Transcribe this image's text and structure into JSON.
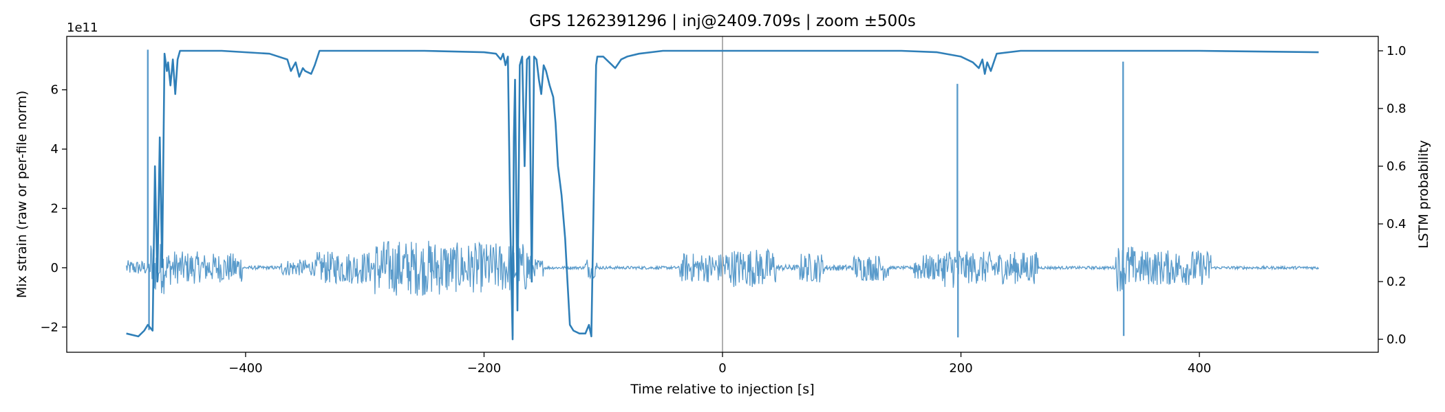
{
  "chart_data": {
    "type": "line",
    "title": "GPS 1262391296 | inj@2409.709s | zoom ±500s",
    "xlabel": "Time relative to injection [s]",
    "ylabel": "Mix strain (raw or per-file norm)",
    "y2label": "LSTM probability",
    "y_offset_text": "1e11",
    "xlim": [
      -550,
      550
    ],
    "ylim": [
      -2.85,
      7.8
    ],
    "y2lim": [
      -0.045,
      1.05
    ],
    "x_ticks": [
      -400,
      -200,
      0,
      200,
      400
    ],
    "x_tick_labels": [
      "−400",
      "−200",
      "0",
      "200",
      "400"
    ],
    "y_ticks": [
      -2,
      0,
      2,
      4,
      6
    ],
    "y_tick_labels": [
      "−2",
      "0",
      "2",
      "4",
      "6"
    ],
    "y2_ticks": [
      0.0,
      0.2,
      0.4,
      0.6,
      0.8,
      1.0
    ],
    "y2_tick_labels": [
      "0.0",
      "0.2",
      "0.4",
      "0.6",
      "0.8",
      "1.0"
    ],
    "vline_x": 0,
    "colors": {
      "strain": "#5a9bcb",
      "probability": "#2f7fb8",
      "vline": "#b0b0b0"
    },
    "strain_bursts": [
      {
        "start": -500,
        "end": -480,
        "amp": 0.25
      },
      {
        "start": -484,
        "end": -478,
        "amp": 1.0
      },
      {
        "start": -478,
        "end": -468,
        "amp": 0.9
      },
      {
        "start": -468,
        "end": -458,
        "amp": 0.6
      },
      {
        "start": -458,
        "end": -440,
        "amp": 0.55
      },
      {
        "start": -440,
        "end": -402,
        "amp": 0.5
      },
      {
        "start": -402,
        "end": -370,
        "amp": 0.06
      },
      {
        "start": -370,
        "end": -340,
        "amp": 0.28
      },
      {
        "start": -340,
        "end": -292,
        "amp": 0.55
      },
      {
        "start": -292,
        "end": -230,
        "amp": 0.95
      },
      {
        "start": -230,
        "end": -160,
        "amp": 0.85
      },
      {
        "start": -160,
        "end": -150,
        "amp": 0.3
      },
      {
        "start": -150,
        "end": -115,
        "amp": 0.05
      },
      {
        "start": -115,
        "end": -105,
        "amp": 0.35
      },
      {
        "start": -105,
        "end": -36,
        "amp": 0.05
      },
      {
        "start": -36,
        "end": 0,
        "amp": 0.5
      },
      {
        "start": 0,
        "end": 45,
        "amp": 0.65
      },
      {
        "start": 45,
        "end": 65,
        "amp": 0.1
      },
      {
        "start": 65,
        "end": 85,
        "amp": 0.5
      },
      {
        "start": 85,
        "end": 110,
        "amp": 0.1
      },
      {
        "start": 110,
        "end": 140,
        "amp": 0.45
      },
      {
        "start": 140,
        "end": 160,
        "amp": 0.05
      },
      {
        "start": 160,
        "end": 185,
        "amp": 0.45
      },
      {
        "start": 185,
        "end": 200,
        "amp": 0.7
      },
      {
        "start": 200,
        "end": 265,
        "amp": 0.55
      },
      {
        "start": 265,
        "end": 330,
        "amp": 0.05
      },
      {
        "start": 330,
        "end": 345,
        "amp": 0.8
      },
      {
        "start": 345,
        "end": 410,
        "amp": 0.6
      },
      {
        "start": 410,
        "end": 500,
        "amp": 0.05
      }
    ],
    "strain_spikes": [
      {
        "x": -482,
        "y": 7.35
      },
      {
        "x": -481,
        "y": -2.1
      },
      {
        "x": -176,
        "y": -2.3
      },
      {
        "x": 197,
        "y": 6.2
      },
      {
        "x": 197.5,
        "y": -2.35
      },
      {
        "x": 336,
        "y": 6.95
      },
      {
        "x": 336.5,
        "y": -2.3
      }
    ],
    "probability_series": {
      "x": [
        -500,
        -490,
        -485,
        -482,
        -478,
        -476,
        -474,
        -472,
        -470,
        -468,
        -466,
        -465,
        -463,
        -461,
        -459,
        -457,
        -455,
        -450,
        -420,
        -380,
        -365,
        -362,
        -358,
        -355,
        -352,
        -350,
        -345,
        -342,
        -338,
        -300,
        -250,
        -200,
        -190,
        -186,
        -184,
        -182,
        -180,
        -178,
        -176,
        -175,
        -174,
        -172,
        -170,
        -168,
        -166,
        -164,
        -162,
        -160,
        -158,
        -156,
        -154,
        -152,
        -150,
        -148,
        -145,
        -142,
        -140,
        -138,
        -135,
        -132,
        -130,
        -128,
        -125,
        -120,
        -115,
        -112,
        -110,
        -108,
        -106,
        -105,
        -100,
        -95,
        -90,
        -85,
        -80,
        -70,
        -50,
        -20,
        0,
        50,
        100,
        150,
        180,
        200,
        210,
        215,
        218,
        220,
        222,
        225,
        230,
        250,
        300,
        400,
        500
      ],
      "y": [
        0.02,
        0.01,
        0.03,
        0.05,
        0.03,
        0.6,
        0.2,
        0.7,
        0.25,
        0.99,
        0.93,
        0.96,
        0.88,
        0.97,
        0.85,
        0.97,
        1.0,
        1.0,
        1.0,
        0.99,
        0.97,
        0.93,
        0.96,
        0.91,
        0.94,
        0.93,
        0.92,
        0.95,
        1.0,
        1.0,
        1.0,
        0.995,
        0.99,
        0.97,
        0.99,
        0.95,
        0.98,
        0.4,
        0.0,
        0.7,
        0.9,
        0.1,
        0.95,
        0.98,
        0.6,
        0.97,
        0.98,
        0.2,
        0.98,
        0.97,
        0.9,
        0.85,
        0.95,
        0.93,
        0.88,
        0.84,
        0.75,
        0.6,
        0.5,
        0.35,
        0.2,
        0.05,
        0.03,
        0.02,
        0.02,
        0.05,
        0.01,
        0.5,
        0.95,
        0.98,
        0.98,
        0.96,
        0.94,
        0.97,
        0.98,
        0.99,
        1.0,
        1.0,
        1.0,
        1.0,
        1.0,
        1.0,
        0.995,
        0.98,
        0.96,
        0.94,
        0.97,
        0.92,
        0.96,
        0.93,
        0.99,
        1.0,
        1.0,
        1.0,
        0.995
      ]
    }
  }
}
